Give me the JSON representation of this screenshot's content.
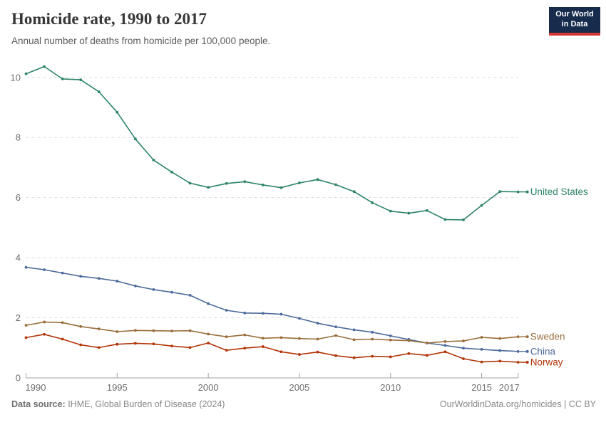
{
  "header": {
    "title": "Homicide rate, 1990 to 2017",
    "subtitle": "Annual number of deaths from homicide per 100,000 people.",
    "logo": {
      "line1": "Our World",
      "line2": "in Data"
    }
  },
  "footer": {
    "source_label": "Data source:",
    "source_text": " IHME, Global Burden of Disease (2024)",
    "credit": "OurWorldinData.org/homicides | CC BY"
  },
  "colors": {
    "united_states": "#2C8465",
    "china": "#4C6A9C",
    "sweden": "#996D39",
    "norway": "#B13507",
    "grid": "#dedede",
    "axis": "#a1a1a1",
    "tick_text": "#6e6e6e",
    "logo_bg": "#172B4D",
    "logo_stripe": "#D43830"
  },
  "chart_data": {
    "type": "line",
    "title": "Homicide rate, 1990 to 2017",
    "xlabel": "",
    "ylabel": "",
    "ylim": [
      0,
      10.6
    ],
    "yticks": [
      0,
      2,
      4,
      6,
      8,
      10
    ],
    "xticks": [
      1990,
      1995,
      2000,
      2005,
      2010,
      2015,
      2017
    ],
    "grid": "horizontal-dashed",
    "legend_position": "end-of-line-labels",
    "x": [
      1990,
      1991,
      1992,
      1993,
      1994,
      1995,
      1996,
      1997,
      1998,
      1999,
      2000,
      2001,
      2002,
      2003,
      2004,
      2005,
      2006,
      2007,
      2008,
      2009,
      2010,
      2011,
      2012,
      2013,
      2014,
      2015,
      2016,
      2017
    ],
    "series": [
      {
        "name": "United States",
        "color": "#2C8465",
        "values": [
          10.12,
          10.36,
          9.95,
          9.92,
          9.52,
          8.84,
          7.95,
          7.25,
          6.85,
          6.48,
          6.34,
          6.47,
          6.53,
          6.42,
          6.33,
          6.49,
          6.6,
          6.43,
          6.2,
          5.83,
          5.55,
          5.48,
          5.57,
          5.27,
          5.26,
          5.74,
          6.2,
          6.19
        ]
      },
      {
        "name": "China",
        "color": "#4C6A9C",
        "values": [
          3.68,
          3.6,
          3.49,
          3.38,
          3.31,
          3.22,
          3.06,
          2.94,
          2.85,
          2.75,
          2.47,
          2.25,
          2.16,
          2.15,
          2.12,
          1.98,
          1.82,
          1.7,
          1.6,
          1.52,
          1.4,
          1.28,
          1.16,
          1.08,
          0.99,
          0.95,
          0.91,
          0.88
        ]
      },
      {
        "name": "Sweden",
        "color": "#996D39",
        "values": [
          1.75,
          1.86,
          1.84,
          1.71,
          1.63,
          1.54,
          1.58,
          1.57,
          1.56,
          1.57,
          1.46,
          1.37,
          1.43,
          1.32,
          1.34,
          1.31,
          1.29,
          1.41,
          1.27,
          1.29,
          1.26,
          1.24,
          1.16,
          1.21,
          1.23,
          1.35,
          1.31,
          1.37
        ]
      },
      {
        "name": "Norway",
        "color": "#B13507",
        "values": [
          1.34,
          1.45,
          1.29,
          1.1,
          1.01,
          1.12,
          1.15,
          1.13,
          1.06,
          1.01,
          1.16,
          0.92,
          0.99,
          1.04,
          0.87,
          0.78,
          0.86,
          0.74,
          0.67,
          0.72,
          0.7,
          0.81,
          0.75,
          0.87,
          0.64,
          0.53,
          0.56,
          0.52
        ]
      }
    ]
  }
}
